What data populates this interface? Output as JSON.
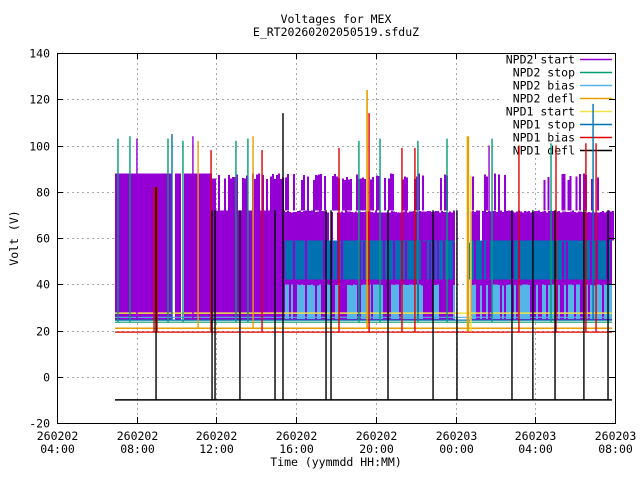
{
  "chart_data": {
    "type": "line",
    "title": "Voltages for MEX",
    "subtitle": "E_RT20260202050519.sfduZ",
    "xlabel": "Time (yymmdd HH:MM)",
    "ylabel": "Volt (V)",
    "ylim": [
      -20,
      140
    ],
    "yticks": [
      -20,
      0,
      20,
      40,
      60,
      80,
      100,
      120,
      140
    ],
    "x_span_hours": 28,
    "xticks": [
      {
        "date": "260202",
        "time": "04:00",
        "t": 0
      },
      {
        "date": "260202",
        "time": "08:00",
        "t": 4
      },
      {
        "date": "260202",
        "time": "12:00",
        "t": 8
      },
      {
        "date": "260202",
        "time": "16:00",
        "t": 12
      },
      {
        "date": "260202",
        "time": "20:00",
        "t": 16
      },
      {
        "date": "260203",
        "time": "00:00",
        "t": 20
      },
      {
        "date": "260203",
        "time": "04:00",
        "t": 24
      },
      {
        "date": "260203",
        "time": "08:00",
        "t": 28
      }
    ],
    "grid": true,
    "grid_color": "#a8a8a8",
    "legend_position": "top-right",
    "series": [
      {
        "name": "NPD2 start",
        "color": "#9400d3"
      },
      {
        "name": "NPD2 stop",
        "color": "#009e73"
      },
      {
        "name": "NPD2 bias",
        "color": "#56b4e9"
      },
      {
        "name": "NPD2 defl",
        "color": "#e69f00"
      },
      {
        "name": "NPD1 start",
        "color": "#f0e442"
      },
      {
        "name": "NPD1 stop",
        "color": "#0072b2"
      },
      {
        "name": "NPD1 bias",
        "color": "#e00000"
      },
      {
        "name": "NPD1 defl",
        "color": "#000000"
      }
    ],
    "data_window": {
      "t_start": 2.91,
      "t_end": 27.85
    },
    "elements": {
      "fills_format": "[t0,t1,v0,v1,series]",
      "fills": [
        [
          2.91,
          7.78,
          24.5,
          88,
          0
        ],
        [
          7.78,
          11.44,
          24.5,
          72,
          0
        ],
        [
          11.44,
          19.97,
          24.5,
          59,
          0
        ],
        [
          11.44,
          19.97,
          42,
          59,
          5
        ],
        [
          20.72,
          27.85,
          24.5,
          59,
          0
        ],
        [
          20.72,
          27.85,
          42,
          59,
          5
        ]
      ],
      "vbars_format": "{t0,t1,b:base_v,h0,h1:top_v_range,d:density,s:series|white,w:step_px}",
      "vbars": [
        {
          "t0": 2.91,
          "t1": 7.78,
          "b": 24.5,
          "h0": 88,
          "h1": 88,
          "d": 0.05,
          "s": "white",
          "w": 3
        },
        {
          "t0": 7.78,
          "t1": 11.44,
          "b": 72,
          "h0": 85.5,
          "h1": 88,
          "d": 0.55,
          "s": 0,
          "w": 2
        },
        {
          "t0": 11.44,
          "t1": 19.97,
          "b": 59,
          "h0": 71,
          "h1": 72,
          "d": 0.95,
          "s": 0,
          "w": 2
        },
        {
          "t0": 11.44,
          "t1": 13.1,
          "b": 72,
          "h0": 85,
          "h1": 88,
          "d": 0.55,
          "s": 0,
          "w": 2
        },
        {
          "t0": 13.1,
          "t1": 14.3,
          "b": 72,
          "h0": 85,
          "h1": 88,
          "d": 0.3,
          "s": 0,
          "w": 2
        },
        {
          "t0": 14.3,
          "t1": 17.4,
          "b": 72,
          "h0": 85,
          "h1": 88,
          "d": 0.55,
          "s": 0,
          "w": 2
        },
        {
          "t0": 17.4,
          "t1": 19.97,
          "b": 72,
          "h0": 85,
          "h1": 88,
          "d": 0.45,
          "s": 0,
          "w": 2
        },
        {
          "t0": 11.44,
          "t1": 19.97,
          "b": 42,
          "h0": 58.5,
          "h1": 59,
          "d": 0.25,
          "s": 0,
          "w": 2
        },
        {
          "t0": 11.44,
          "t1": 19.97,
          "b": 25,
          "h0": 39.5,
          "h1": 40,
          "d": 0.6,
          "s": 2,
          "w": 2
        },
        {
          "t0": 19.97,
          "t1": 20.72,
          "b": 42,
          "h0": 58,
          "h1": 59,
          "d": 0.3,
          "s": 5,
          "w": 2
        },
        {
          "t0": 19.97,
          "t1": 20.72,
          "b": 25,
          "h0": 39,
          "h1": 40,
          "d": 0.3,
          "s": 2,
          "w": 2
        },
        {
          "t0": 20.72,
          "t1": 27.85,
          "b": 59,
          "h0": 71,
          "h1": 72,
          "d": 0.96,
          "s": 0,
          "w": 2
        },
        {
          "t0": 20.72,
          "t1": 22.6,
          "b": 72,
          "h0": 85,
          "h1": 88,
          "d": 0.6,
          "s": 0,
          "w": 2
        },
        {
          "t0": 22.6,
          "t1": 24.4,
          "b": 72,
          "h0": 85,
          "h1": 88,
          "d": 0.12,
          "s": 0,
          "w": 2
        },
        {
          "t0": 24.4,
          "t1": 26.1,
          "b": 72,
          "h0": 85,
          "h1": 88,
          "d": 0.5,
          "s": 0,
          "w": 2
        },
        {
          "t0": 26.1,
          "t1": 27.85,
          "b": 72,
          "h0": 85,
          "h1": 88,
          "d": 0.35,
          "s": 0,
          "w": 2
        },
        {
          "t0": 20.72,
          "t1": 27.85,
          "b": 42,
          "h0": 58.5,
          "h1": 59,
          "d": 0.08,
          "s": 0,
          "w": 2
        },
        {
          "t0": 20.72,
          "t1": 27.85,
          "b": 25,
          "h0": 39.5,
          "h1": 40,
          "d": 0.6,
          "s": 2,
          "w": 2
        }
      ],
      "hlines_format": "[v,t0,t1,series,width_px]",
      "hlines": [
        [
          27.5,
          2.91,
          27.85,
          4,
          1.5
        ],
        [
          25.7,
          2.91,
          27.85,
          2,
          1.2
        ],
        [
          24.5,
          2.91,
          27.85,
          5,
          1.2
        ],
        [
          23.6,
          2.91,
          27.85,
          1,
          1.2
        ],
        [
          21.0,
          2.91,
          27.85,
          3,
          1.5
        ],
        [
          19.3,
          2.91,
          27.85,
          6,
          1.2
        ],
        [
          -10.0,
          2.91,
          27.85,
          7,
          1.5
        ]
      ],
      "spikes_format": "[t,v_from,v_to,series,width_px]",
      "spikes": [
        [
          3.06,
          23.5,
          103,
          1,
          1.4
        ],
        [
          3.66,
          23.5,
          104,
          1,
          1.4
        ],
        [
          5.57,
          23.5,
          103,
          1,
          1.4
        ],
        [
          6.32,
          23.5,
          102,
          1,
          1.4
        ],
        [
          8.98,
          23.5,
          102,
          1,
          1.4
        ],
        [
          9.58,
          23.5,
          103,
          1,
          1.4
        ],
        [
          15.15,
          23.5,
          102,
          1,
          1.4
        ],
        [
          16.21,
          23.5,
          103,
          1,
          1.4
        ],
        [
          18.11,
          23.5,
          102,
          1,
          1.4
        ],
        [
          19.57,
          23.5,
          103,
          1,
          1.4
        ],
        [
          21.83,
          23.5,
          103,
          1,
          1.4
        ],
        [
          24.79,
          23.5,
          101,
          1,
          1.4
        ],
        [
          4.01,
          24.5,
          103,
          0,
          1.4
        ],
        [
          6.82,
          24.5,
          104,
          0,
          1.4
        ],
        [
          21.68,
          24.5,
          100,
          0,
          1.4
        ],
        [
          5.77,
          24.5,
          105,
          5,
          1.4
        ],
        [
          26.9,
          24.5,
          118,
          5,
          1.4
        ],
        [
          7.08,
          21,
          102,
          3,
          1.4
        ],
        [
          9.84,
          21,
          104,
          3,
          1.4
        ],
        [
          15.56,
          21,
          124,
          3,
          1.6
        ],
        [
          20.62,
          19.5,
          104,
          3,
          2.5
        ],
        [
          20.77,
          19.5,
          87,
          4,
          1.5
        ],
        [
          4.87,
          19.3,
          82,
          6,
          1.4
        ],
        [
          5.02,
          19.3,
          82,
          6,
          1.4
        ],
        [
          7.73,
          19.3,
          98,
          6,
          1.4
        ],
        [
          10.29,
          19.3,
          98,
          6,
          1.4
        ],
        [
          14.15,
          19.3,
          99,
          6,
          1.4
        ],
        [
          15.66,
          19.3,
          114,
          6,
          1.4
        ],
        [
          17.31,
          19.3,
          99,
          6,
          1.4
        ],
        [
          17.96,
          19.3,
          99,
          6,
          1.4
        ],
        [
          23.18,
          19.3,
          100,
          6,
          1.4
        ],
        [
          25.04,
          19.3,
          100,
          6,
          1.4
        ],
        [
          26.54,
          19.3,
          101,
          6,
          1.4
        ],
        [
          27.05,
          19.3,
          101,
          6,
          1.4
        ],
        [
          4.97,
          -10,
          82,
          7,
          1.4
        ],
        [
          7.78,
          -10,
          72,
          7,
          1.4
        ],
        [
          7.93,
          -10,
          72,
          7,
          1.4
        ],
        [
          9.18,
          -10,
          72,
          7,
          1.4
        ],
        [
          10.94,
          -10,
          72,
          7,
          1.4
        ],
        [
          11.34,
          -10,
          114,
          7,
          1.4
        ],
        [
          13.5,
          -10,
          72,
          7,
          1.4
        ],
        [
          13.75,
          -10,
          72,
          7,
          1.4
        ],
        [
          16.61,
          -10,
          72,
          7,
          1.4
        ],
        [
          18.87,
          -10,
          72,
          7,
          1.4
        ],
        [
          20.07,
          -10,
          72,
          7,
          1.4
        ],
        [
          22.83,
          -10,
          72,
          7,
          1.4
        ],
        [
          23.88,
          -10,
          72,
          7,
          1.4
        ],
        [
          24.99,
          -10,
          72,
          7,
          1.4
        ],
        [
          26.44,
          -10,
          72,
          7,
          1.4
        ],
        [
          27.65,
          -10,
          72,
          7,
          1.4
        ]
      ]
    }
  }
}
